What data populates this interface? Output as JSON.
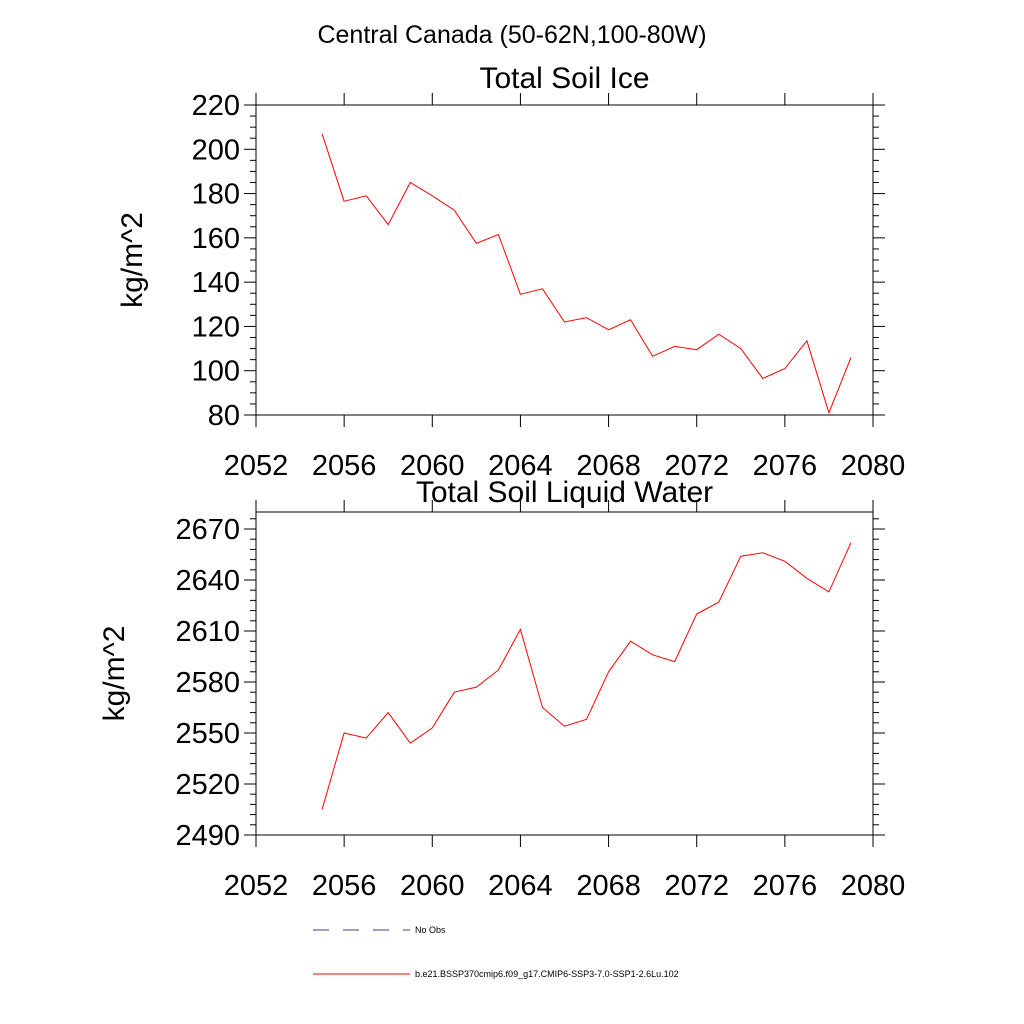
{
  "suptitle": "Central Canada (50-62N,100-80W)",
  "chart_data": [
    {
      "type": "line",
      "title": "Total Soil Ice",
      "xlabel": "",
      "ylabel": "kg/m^2",
      "xlim": [
        2052,
        2080
      ],
      "ylim": [
        80,
        220
      ],
      "xticks": [
        2052,
        2056,
        2060,
        2064,
        2068,
        2072,
        2076,
        2080
      ],
      "yticks": [
        80,
        100,
        120,
        140,
        160,
        180,
        200,
        220
      ],
      "x": [
        2055,
        2056,
        2057,
        2058,
        2059,
        2060,
        2061,
        2062,
        2063,
        2064,
        2065,
        2066,
        2067,
        2068,
        2069,
        2070,
        2071,
        2072,
        2073,
        2074,
        2075,
        2076,
        2077,
        2078,
        2079
      ],
      "series": [
        {
          "name": "b.e21.BSSP370cmip6.f09_g17.CMIP6-SSP3-7.0-SSP1-2.6Lu.102",
          "color": "#ff0000",
          "values": [
            207,
            176.5,
            179,
            166,
            185,
            179,
            172.5,
            157.5,
            161.5,
            134.5,
            137,
            122,
            124,
            118.5,
            123,
            106.5,
            111,
            109.5,
            116.5,
            110,
            96.5,
            101,
            113.5,
            81,
            106
          ]
        }
      ]
    },
    {
      "type": "line",
      "title": "Total Soil Liquid Water",
      "xlabel": "",
      "ylabel": "kg/m^2",
      "xlim": [
        2052,
        2080
      ],
      "ylim": [
        2490,
        2680
      ],
      "xticks": [
        2052,
        2056,
        2060,
        2064,
        2068,
        2072,
        2076,
        2080
      ],
      "yticks": [
        2490,
        2520,
        2550,
        2580,
        2610,
        2640,
        2670
      ],
      "x": [
        2055,
        2056,
        2057,
        2058,
        2059,
        2060,
        2061,
        2062,
        2063,
        2064,
        2065,
        2066,
        2067,
        2068,
        2069,
        2070,
        2071,
        2072,
        2073,
        2074,
        2075,
        2076,
        2077,
        2078,
        2079
      ],
      "series": [
        {
          "name": "b.e21.BSSP370cmip6.f09_g17.CMIP6-SSP3-7.0-SSP1-2.6Lu.102",
          "color": "#ff0000",
          "values": [
            2505,
            2550,
            2547,
            2562,
            2544,
            2553,
            2574,
            2577,
            2587,
            2611,
            2565,
            2554,
            2558,
            2586,
            2604,
            2596,
            2592,
            2620,
            2627,
            2654,
            2656,
            2651,
            2641,
            2633,
            2662
          ]
        }
      ]
    }
  ],
  "legend": {
    "items": [
      {
        "label": "No Obs",
        "color": "#3c3c8c",
        "style": "dashed"
      },
      {
        "label": "b.e21.BSSP370cmip6.f09_g17.CMIP6-SSP3-7.0-SSP1-2.6Lu.102",
        "color": "#ff0000",
        "style": "solid"
      }
    ]
  }
}
